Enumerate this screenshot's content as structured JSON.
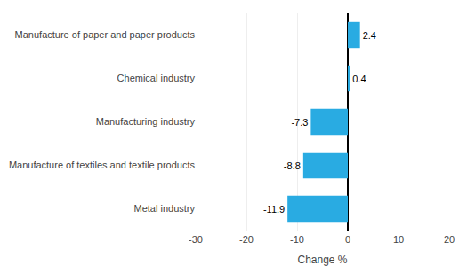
{
  "chart_data": {
    "type": "bar",
    "orientation": "horizontal",
    "categories": [
      "Metal industry",
      "Manufacture of textiles and textile products",
      "Manufacturing industry",
      "Chemical industry",
      "Manufacture of paper and paper products"
    ],
    "values": [
      -11.9,
      -8.8,
      -7.3,
      0.4,
      2.4
    ],
    "color": "#29abe2",
    "xlabel": "Change %",
    "xlim": [
      -30,
      20
    ],
    "xticks": [
      -30,
      -20,
      -10,
      0,
      10,
      20
    ],
    "grid": true,
    "data_labels": true
  }
}
